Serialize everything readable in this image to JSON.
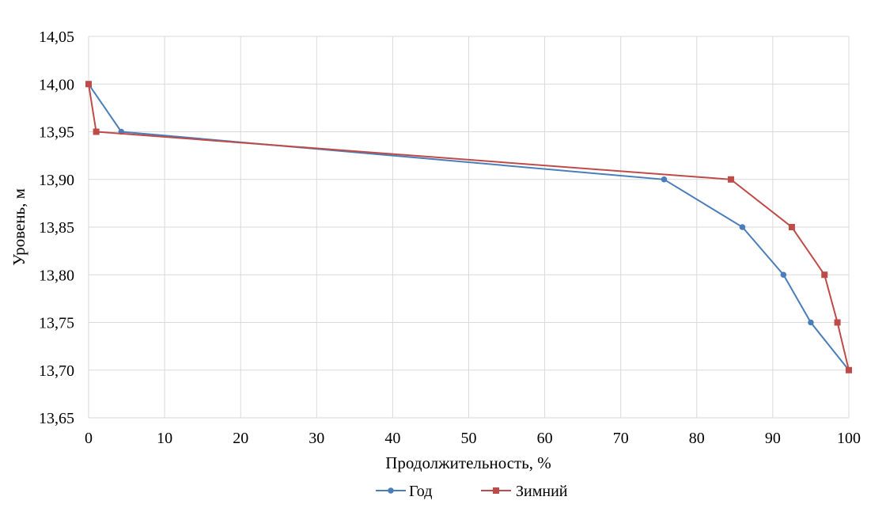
{
  "chart_data": {
    "type": "line",
    "title": "",
    "xlabel": "Продолжительность, %",
    "ylabel": "Уровень, м",
    "xlim": [
      0,
      100
    ],
    "ylim": [
      13.65,
      14.05
    ],
    "xticks": [
      0,
      10,
      20,
      30,
      40,
      50,
      60,
      70,
      80,
      90,
      100
    ],
    "yticks": [
      13.65,
      13.7,
      13.75,
      13.8,
      13.85,
      13.9,
      13.95,
      14.0,
      14.05
    ],
    "x_tick_labels": [
      "0",
      "10",
      "20",
      "30",
      "40",
      "50",
      "60",
      "70",
      "80",
      "90",
      "100"
    ],
    "y_tick_labels": [
      "13,65",
      "13,70",
      "13,75",
      "13,80",
      "13,85",
      "13,90",
      "13,95",
      "14,00",
      "14,05"
    ],
    "grid": true,
    "legend_position": "bottom",
    "series": [
      {
        "name": "Год",
        "color": "#4a7ebb",
        "marker": "circle",
        "x": [
          0,
          4.3,
          75.7,
          86,
          91.4,
          95,
          100
        ],
        "y": [
          14.0,
          13.95,
          13.9,
          13.85,
          13.8,
          13.75,
          13.7
        ]
      },
      {
        "name": "Зимний",
        "color": "#be4b48",
        "marker": "square",
        "x": [
          0,
          1,
          84.5,
          92.5,
          96.8,
          98.5,
          100
        ],
        "y": [
          14.0,
          13.95,
          13.9,
          13.85,
          13.8,
          13.75,
          13.7
        ]
      }
    ]
  }
}
